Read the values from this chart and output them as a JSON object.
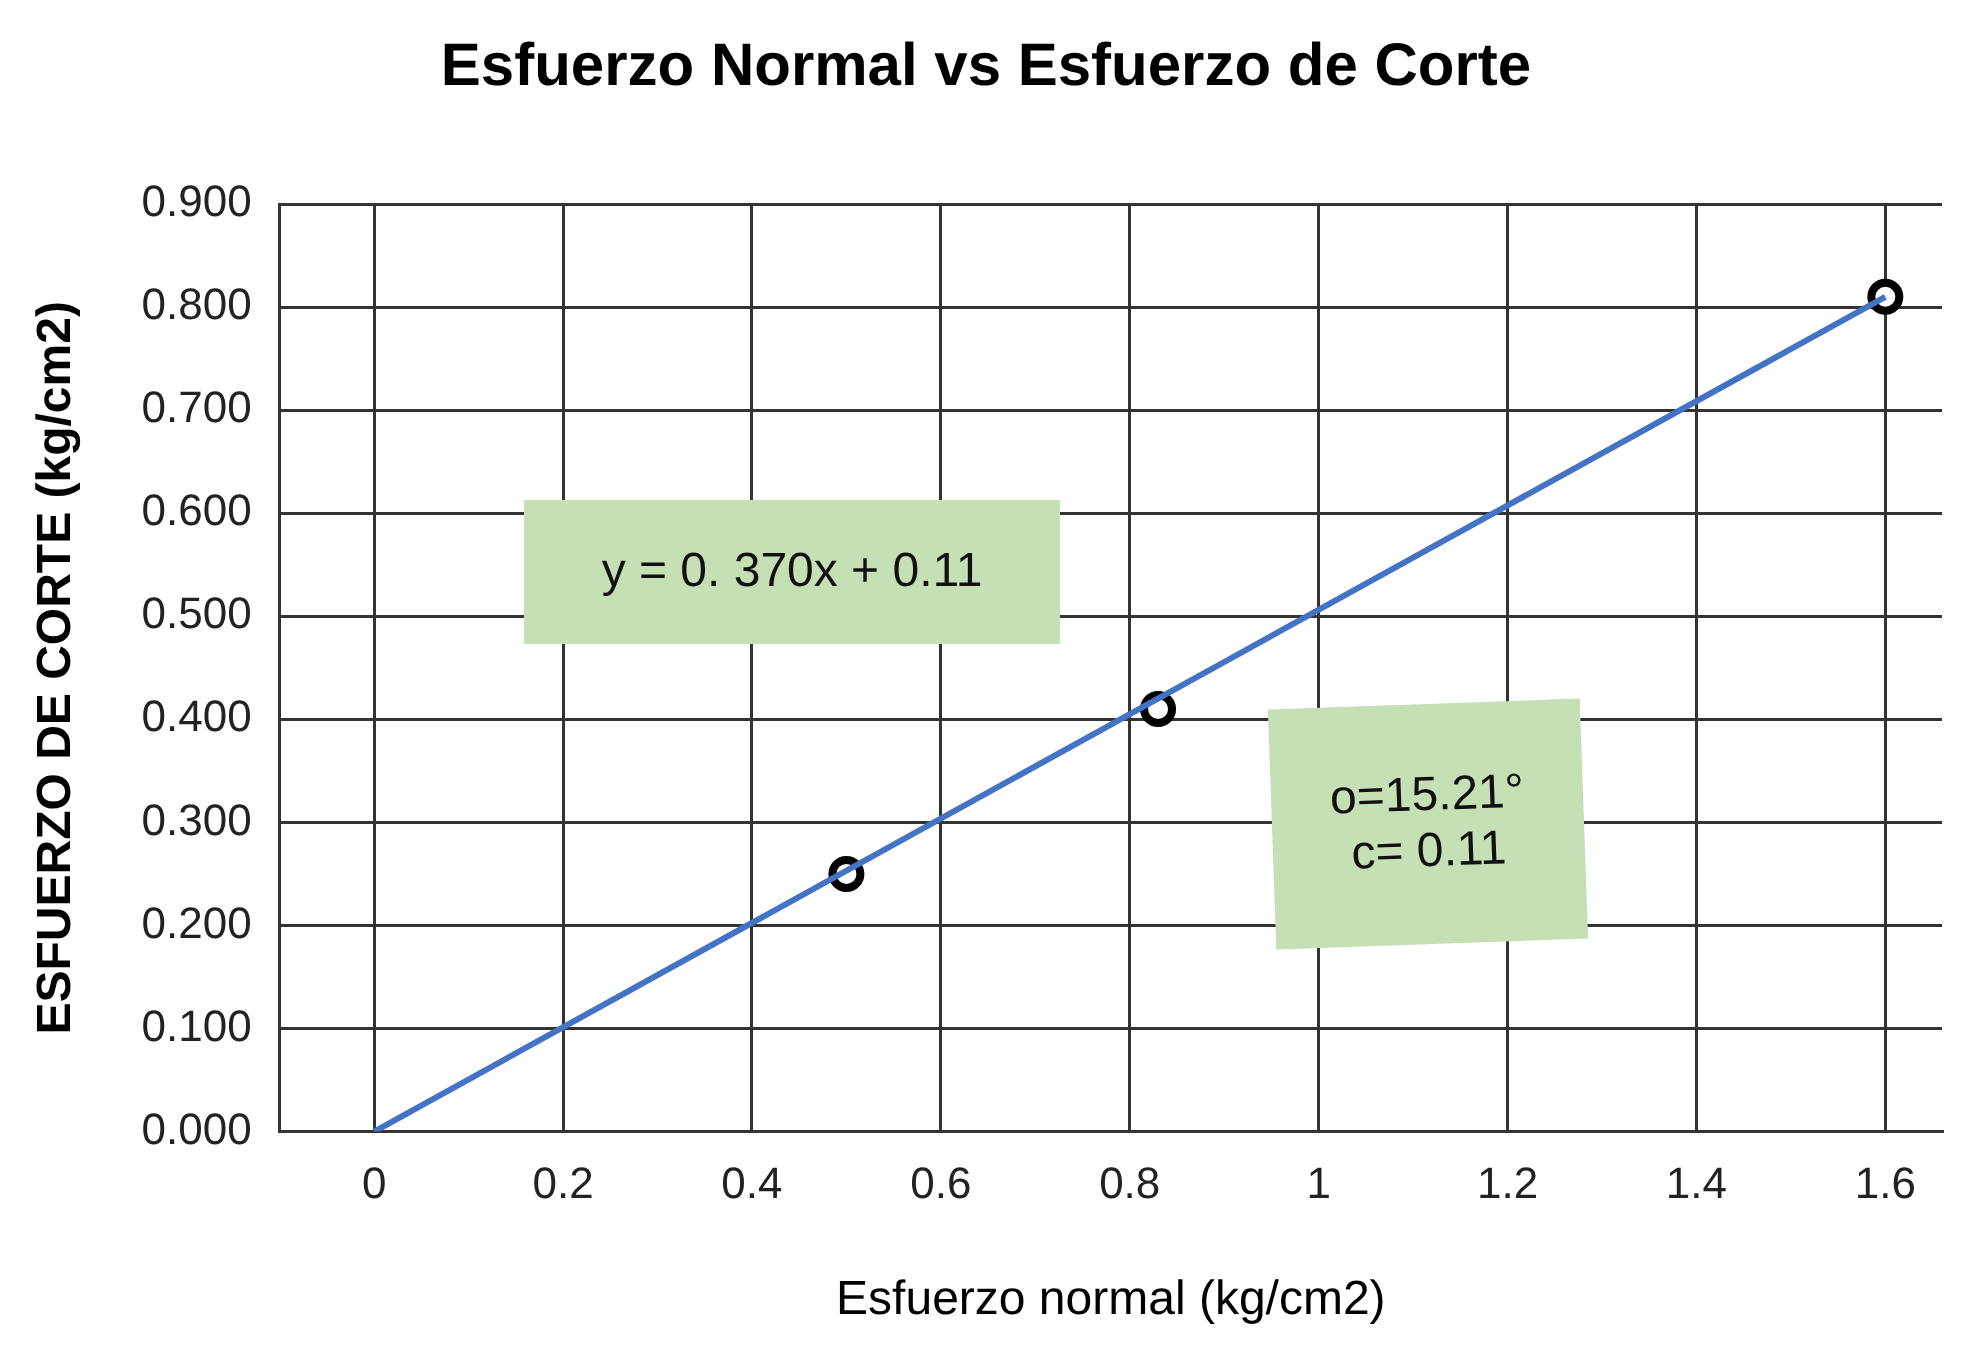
{
  "chart_data": {
    "type": "scatter",
    "title": "Esfuerzo Normal vs Esfuerzo de Corte",
    "xlabel": "Esfuerzo normal (kg/cm2)",
    "ylabel": "ESFUERZO DE CORTE (kg/cm2)",
    "xlim": [
      -0.1,
      1.66
    ],
    "xticks": [
      0,
      0.2,
      0.4,
      0.6,
      0.8,
      1,
      1.2,
      1.4,
      1.6
    ],
    "ylim": [
      0,
      0.9
    ],
    "yticks": [
      {
        "value": 0,
        "label": "0.000"
      },
      {
        "value": 0.1,
        "label": "0.100"
      },
      {
        "value": 0.2,
        "label": "0.200"
      },
      {
        "value": 0.3,
        "label": "0.300"
      },
      {
        "value": 0.4,
        "label": "0.400"
      },
      {
        "value": 0.5,
        "label": "0.500"
      },
      {
        "value": 0.6,
        "label": "0.600"
      },
      {
        "value": 0.7,
        "label": "0.700"
      },
      {
        "value": 0.8,
        "label": "0.800"
      },
      {
        "value": 0.9,
        "label": "0.900"
      }
    ],
    "grid": true,
    "legend": false,
    "marker": "circle",
    "series": [
      {
        "type": "line",
        "color": "#4472c4",
        "x": [
          0,
          1.6
        ],
        "values": [
          0,
          0.81
        ],
        "marker": "none"
      },
      {
        "type": "scatter",
        "color": "#000000",
        "x": [
          0.5,
          0.83,
          1.6
        ],
        "values": [
          0.25,
          0.41,
          0.81
        ]
      }
    ],
    "annotations": [
      "y = 0. 370x + 0.11",
      "o=15.21°\nc= 0.11"
    ]
  }
}
